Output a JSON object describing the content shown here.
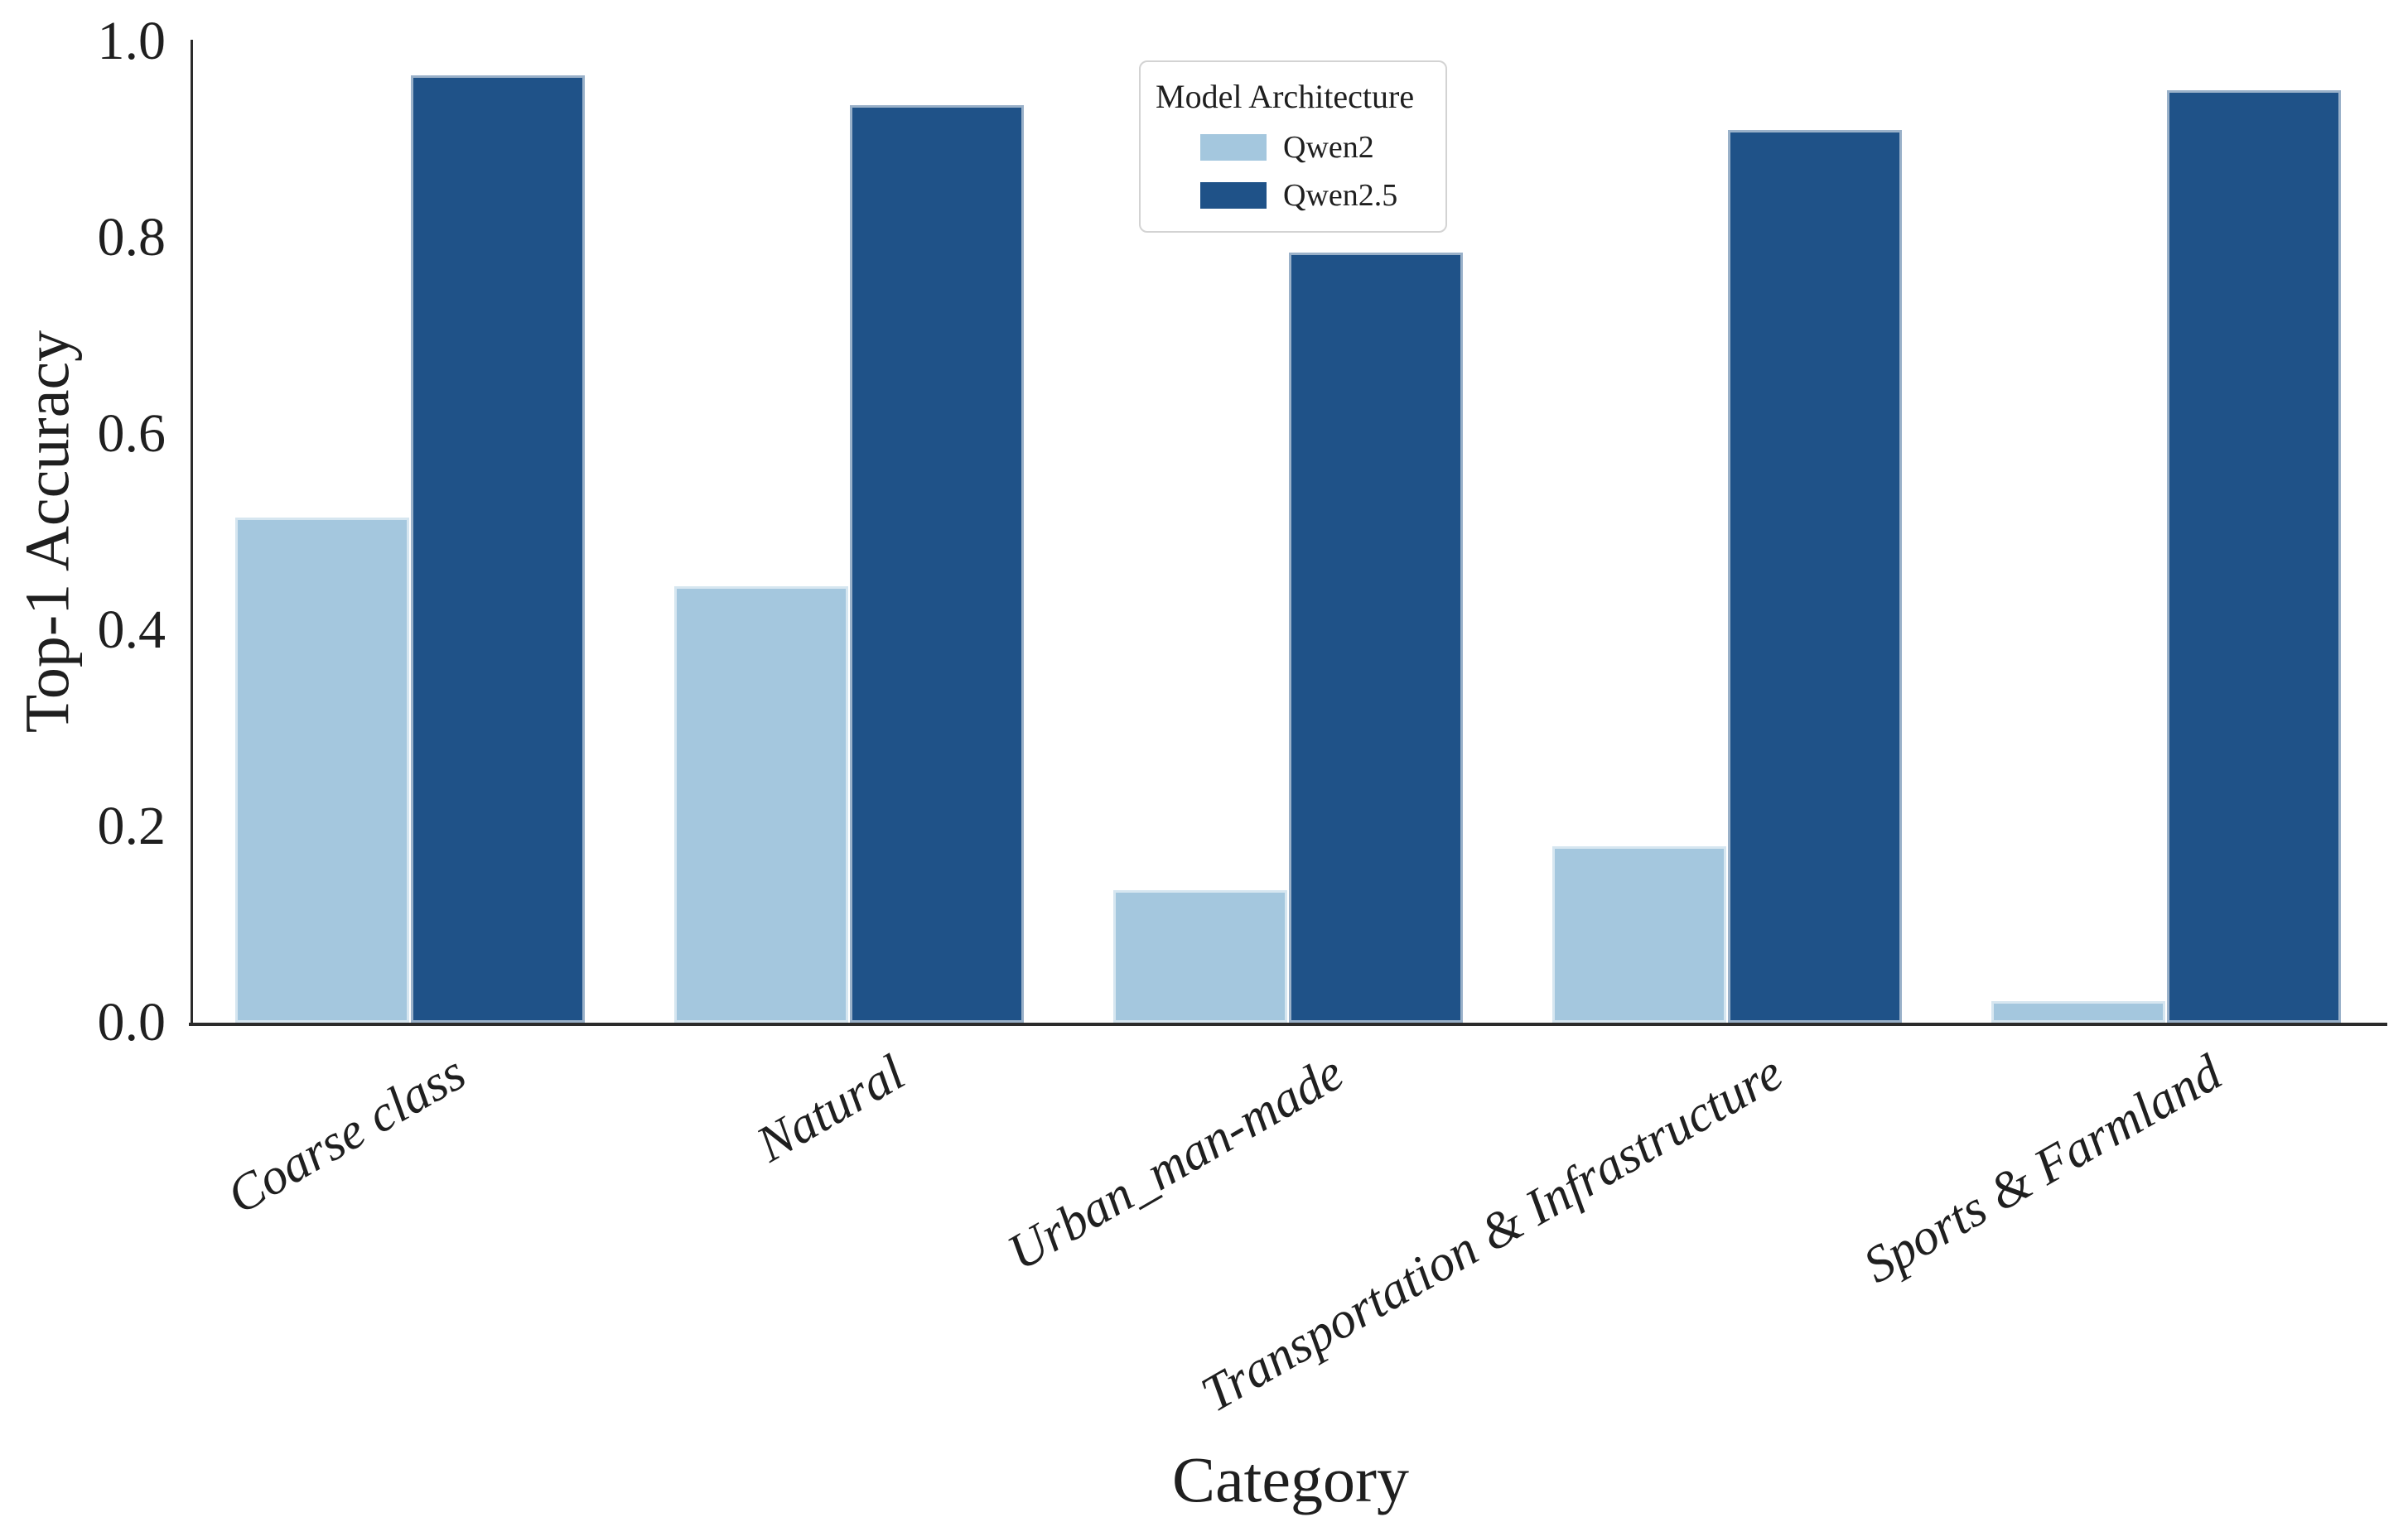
{
  "chart_data": {
    "type": "bar",
    "title": "",
    "xlabel": "Category",
    "ylabel": "Top-1 Accuracy",
    "categories": [
      "Coarse class",
      "Natural",
      "Urban_man-made",
      "Transportation & Infrastructure",
      "Sports & Farmland"
    ],
    "series": [
      {
        "name": "Qwen2",
        "color": "#a4c7de",
        "values": [
          0.515,
          0.445,
          0.135,
          0.18,
          0.022
        ]
      },
      {
        "name": "Qwen2.5",
        "color": "#1f5288",
        "values": [
          0.965,
          0.935,
          0.785,
          0.91,
          0.95
        ]
      }
    ],
    "legend_title": "Model Architecture",
    "ylim": [
      0.0,
      1.0
    ],
    "yticks": [
      0.0,
      0.2,
      0.4,
      0.6,
      0.8,
      1.0
    ],
    "ytick_format_decimals": 1,
    "xtick_rotation_deg": 30,
    "grid": false,
    "legend_position": "upper center, inside plot",
    "spines": "left and bottom only",
    "background": "#ffffff",
    "text_color": "#1f1f1f"
  }
}
